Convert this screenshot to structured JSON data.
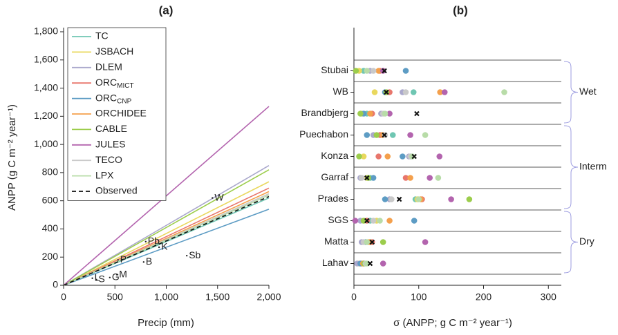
{
  "chart_data": [
    {
      "type": "line",
      "title": "(a)",
      "x_label": "Precip (mm)",
      "y_label": "ANPP (g C m⁻² year⁻¹)",
      "x": [
        0,
        2000
      ],
      "xlim": [
        0,
        2000
      ],
      "xticks": [
        0,
        500,
        {
          "value": 1000,
          "label": "1,000"
        },
        {
          "value": 1500,
          "label": "1,500"
        },
        {
          "value": 2000,
          "label": "2,000"
        }
      ],
      "ylim": [
        0,
        1800
      ],
      "yticks": [
        0,
        200,
        400,
        600,
        800,
        {
          "value": 1000,
          "label": "1,000"
        },
        {
          "value": 1200,
          "label": "1,200"
        },
        {
          "value": 1400,
          "label": "1,400"
        },
        {
          "value": 1600,
          "label": "1,600"
        },
        {
          "value": 1800,
          "label": "1,800"
        }
      ],
      "legend": "upper left",
      "series": [
        {
          "name": "TC",
          "color": "#6fc6b2",
          "values": [
            0,
            620
          ]
        },
        {
          "name": "JSBACH",
          "color": "#e9d85e",
          "values": [
            0,
            735
          ]
        },
        {
          "name": "DLEM",
          "color": "#aaa8cc",
          "values": [
            0,
            850
          ]
        },
        {
          "name": "ORC_MICT",
          "color": "#e8766c",
          "values": [
            0,
            690
          ]
        },
        {
          "name": "ORC_CNP",
          "color": "#5d9cc4",
          "values": [
            0,
            540
          ]
        },
        {
          "name": "ORCHIDEE",
          "color": "#f4a04c",
          "values": [
            0,
            665
          ]
        },
        {
          "name": "CABLE",
          "color": "#9ccd4c",
          "values": [
            0,
            820
          ]
        },
        {
          "name": "JULES",
          "color": "#b364ae",
          "values": [
            0,
            1270
          ]
        },
        {
          "name": "TECO",
          "color": "#c9c9c9",
          "values": [
            0,
            650
          ]
        },
        {
          "name": "LPX",
          "color": "#b8dca8",
          "values": [
            0,
            640
          ]
        },
        {
          "name": "Observed",
          "color": "#111111",
          "dashed": true,
          "values": [
            0,
            630
          ]
        }
      ],
      "points": {
        "labels": [
          "W",
          "Pb",
          "K",
          "Sb",
          "P",
          "B",
          "M",
          "G",
          "L",
          "S"
        ],
        "x": [
          1450,
          800,
          930,
          1200,
          530,
          780,
          520,
          450,
          280,
          320
        ],
        "y": [
          620,
          310,
          270,
          210,
          180,
          165,
          75,
          55,
          50,
          40
        ]
      }
    },
    {
      "type": "dot",
      "title": "(b)",
      "x_label": "σ (ANPP; g C m⁻² year⁻¹)",
      "categories": [
        "Stubai",
        "WB",
        "Brandbjerg",
        "Puechabon",
        "Konza",
        "Garraf",
        "Prades",
        "SGS",
        "Matta",
        "Lahav"
      ],
      "xlim": [
        0,
        320
      ],
      "xticks": [
        0,
        100,
        200,
        300
      ],
      "groups": [
        {
          "label": "Wet",
          "members": [
            "Stubai",
            "WB",
            "Brandbjerg"
          ]
        },
        {
          "label": "Interm",
          "members": [
            "Puechabon",
            "Konza",
            "Garraf",
            "Prades"
          ]
        },
        {
          "label": "Dry",
          "members": [
            "SGS",
            "Matta",
            "Lahav"
          ]
        }
      ],
      "series": [
        {
          "name": "TC",
          "color": "#6fc6b2",
          "values": [
            15,
            92,
            20,
            60,
            88,
            25,
            95,
            25,
            25,
            12
          ]
        },
        {
          "name": "JSBACH",
          "color": "#e9d85e",
          "values": [
            8,
            32,
            12,
            42,
            15,
            20,
            98,
            35,
            22,
            8
          ]
        },
        {
          "name": "DLEM",
          "color": "#aaa8cc",
          "values": [
            25,
            75,
            42,
            30,
            85,
            10,
            55,
            10,
            12,
            5
          ]
        },
        {
          "name": "ORC_MICT",
          "color": "#e8766c",
          "values": [
            40,
            55,
            28,
            40,
            38,
            80,
            105,
            20,
            28,
            15
          ]
        },
        {
          "name": "ORC_CNP",
          "color": "#5d9cc4",
          "values": [
            80,
            48,
            15,
            20,
            75,
            30,
            48,
            93,
            18,
            10
          ]
        },
        {
          "name": "ORCHIDEE",
          "color": "#f4a04c",
          "values": [
            38,
            133,
            25,
            45,
            52,
            87,
            103,
            55,
            24,
            14
          ]
        },
        {
          "name": "CABLE",
          "color": "#9ccd4c",
          "values": [
            3,
            50,
            10,
            35,
            8,
            22,
            178,
            15,
            45,
            16
          ]
        },
        {
          "name": "JULES",
          "color": "#b364ae",
          "values": [
            45,
            140,
            55,
            87,
            132,
            117,
            150,
            2,
            110,
            45
          ]
        },
        {
          "name": "TECO",
          "color": "#c9c9c9",
          "values": [
            30,
            80,
            45,
            48,
            87,
            12,
            58,
            30,
            15,
            18
          ]
        },
        {
          "name": "LPX",
          "color": "#b8dca8",
          "values": [
            20,
            232,
            48,
            110,
            90,
            130,
            100,
            40,
            20,
            20
          ]
        },
        {
          "name": "Observed",
          "color": "#111111",
          "marker": "x",
          "values": [
            47,
            50,
            97,
            47,
            93,
            20,
            70,
            20,
            28,
            25
          ]
        }
      ]
    }
  ]
}
